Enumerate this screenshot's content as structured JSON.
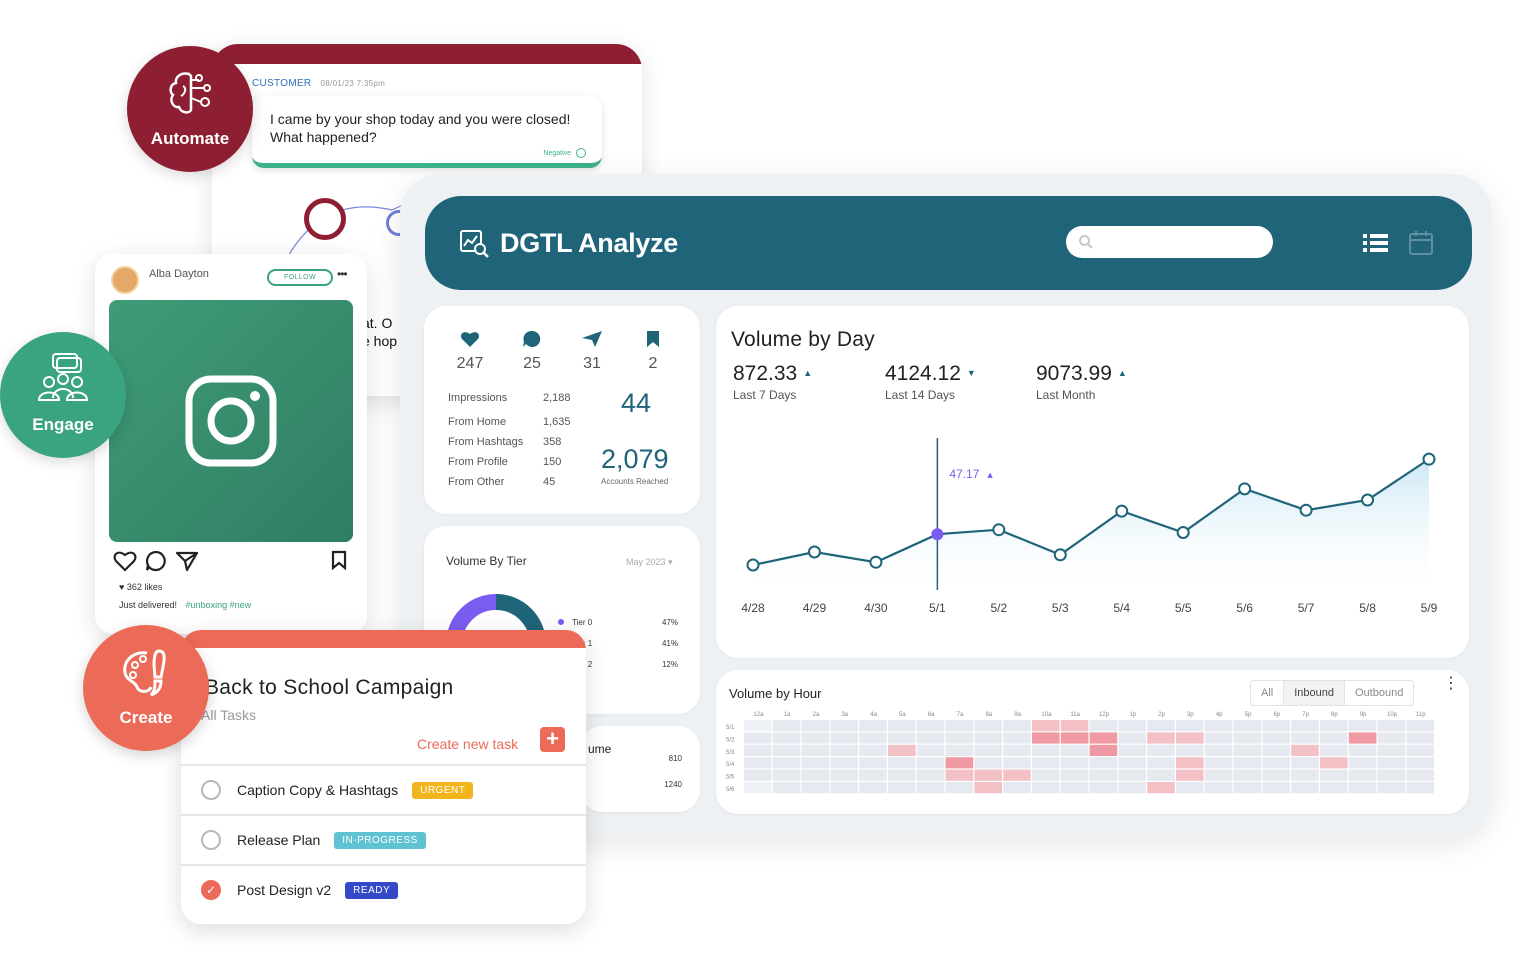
{
  "colors": {
    "automate": "#8e1f33",
    "engage": "#3aa380",
    "create": "#ec6a58",
    "dashboard_header": "#1f6479",
    "chart_line": "#1f6479",
    "highlight_point": "#7b5cf0"
  },
  "automate": {
    "label": "Automate",
    "icon": "brain-circuit-icon",
    "chat": {
      "sender": "CUSTOMER",
      "timestamp": "08/01/23 7:35pm",
      "message_line1": "I came by your shop today and you were closed!",
      "message_line2": "What happened?",
      "sentiment": "Negative",
      "peek_line1": "at. O",
      "peek_line2": "e hop"
    }
  },
  "engage": {
    "label": "Engage",
    "icon": "group-chat-icon",
    "post": {
      "username": "Alba Dayton",
      "follow_label": "FOLLOW",
      "more_label": "•••",
      "likes": "362 likes",
      "caption": "Just delivered!",
      "tags": "#unboxing #new"
    }
  },
  "create": {
    "label": "Create",
    "icon": "palette-brush-icon",
    "tasks_card": {
      "title": "Back to School Campaign",
      "subtitle": "All Tasks",
      "create_label": "Create new task",
      "tasks": [
        {
          "name": "Caption Copy & Hashtags",
          "status": "URGENT",
          "status_color": "#f3b51c",
          "done": false
        },
        {
          "name": "Release Plan",
          "status": "IN-PROGRESS",
          "status_color": "#5fc2d3",
          "done": false
        },
        {
          "name": "Post Design v2",
          "status": "READY",
          "status_color": "#3349c8",
          "done": true
        }
      ]
    }
  },
  "dashboard": {
    "title": "DGTL Analyze",
    "search_placeholder": "",
    "stats": {
      "likes": "247",
      "comments": "25",
      "shares": "31",
      "saves": "2",
      "rows": [
        {
          "label": "Impressions",
          "value": "2,188"
        },
        {
          "label": "From Home",
          "value": "1,635"
        },
        {
          "label": "From Hashtags",
          "value": "358"
        },
        {
          "label": "From Profile",
          "value": "150"
        },
        {
          "label": "From Other",
          "value": "45"
        }
      ],
      "big_value_1": "44",
      "big_value_2": "2,079",
      "big_value_2_label": "Accounts Reached"
    },
    "tier": {
      "title": "Volume By Tier",
      "date": "May 2023 ▾",
      "rows": [
        {
          "label": "Tier 0",
          "value": "47%",
          "color": "#7b5cf0"
        },
        {
          "label": "Tier 1",
          "value": "41%",
          "color": "#1f6479"
        },
        {
          "label": "Tier 2",
          "value": "12%",
          "color": "#e8e8e8"
        }
      ]
    },
    "volume_mini": {
      "title": "ume",
      "value1": "810",
      "value2": "1240"
    },
    "volume_by_day": {
      "title": "Volume by Day",
      "kpis": [
        {
          "value": "872.33",
          "label": "Last 7 Days"
        },
        {
          "value": "4124.12",
          "label": "Last 14 Days"
        },
        {
          "value": "9073.99",
          "label": "Last Month"
        }
      ],
      "tooltip": "47.17"
    },
    "volume_by_hour": {
      "title": "Volume by Hour",
      "tabs": [
        "All",
        "Inbound",
        "Outbound"
      ],
      "active_tab": "Inbound",
      "hours": [
        "12a",
        "1a",
        "2a",
        "3a",
        "4a",
        "5a",
        "6a",
        "7a",
        "8a",
        "9a",
        "10a",
        "11a",
        "12p",
        "1p",
        "2p",
        "3p",
        "4p",
        "5p",
        "6p",
        "7p",
        "8p",
        "9p",
        "10p",
        "11p"
      ],
      "days": [
        "5/1",
        "5/2",
        "5/3",
        "5/4",
        "5/5",
        "5/6"
      ],
      "intensity": [
        [
          0,
          1,
          1,
          1,
          1,
          1,
          1,
          1,
          1,
          1,
          2,
          2,
          1,
          1,
          1,
          1,
          1,
          1,
          1,
          1,
          1,
          1,
          1,
          1
        ],
        [
          1,
          1,
          1,
          1,
          1,
          1,
          1,
          1,
          1,
          1,
          3,
          3,
          3,
          1,
          2,
          2,
          1,
          1,
          1,
          1,
          1,
          3,
          1,
          1
        ],
        [
          1,
          1,
          1,
          1,
          1,
          2,
          1,
          1,
          1,
          1,
          1,
          1,
          3,
          1,
          1,
          1,
          1,
          1,
          1,
          2,
          1,
          1,
          1,
          1
        ],
        [
          1,
          1,
          1,
          1,
          1,
          1,
          1,
          3,
          1,
          1,
          1,
          1,
          1,
          1,
          1,
          2,
          1,
          1,
          1,
          1,
          2,
          1,
          1,
          1
        ],
        [
          1,
          1,
          1,
          1,
          1,
          1,
          1,
          2,
          2,
          2,
          1,
          1,
          1,
          1,
          1,
          2,
          1,
          1,
          1,
          1,
          1,
          1,
          1,
          1
        ],
        [
          0,
          1,
          1,
          1,
          1,
          1,
          1,
          1,
          2,
          1,
          1,
          1,
          1,
          1,
          2,
          1,
          1,
          1,
          1,
          1,
          1,
          1,
          1,
          1
        ]
      ]
    }
  },
  "chart_data": {
    "type": "area",
    "title": "Volume by Day",
    "xlabel": "",
    "ylabel": "",
    "x": [
      "4/28",
      "4/29",
      "4/30",
      "5/1",
      "5/2",
      "5/3",
      "5/4",
      "5/5",
      "5/6",
      "5/7",
      "5/8",
      "5/9"
    ],
    "series": [
      {
        "values": [
          14,
          28,
          17,
          47.17,
          52,
          25,
          72,
          49,
          96,
          73,
          84,
          128
        ]
      }
    ],
    "ylim": [
      0,
      140
    ],
    "highlight": {
      "x": "5/1",
      "value": 47.17
    },
    "grid": false
  }
}
